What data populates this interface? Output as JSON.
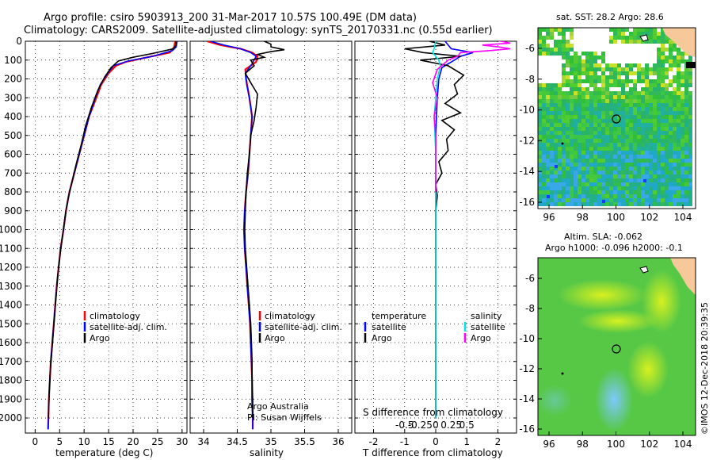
{
  "title_line1": "Argo profile: csiro 5903913_200 31-Mar-2017 10.57S 100.49E (DM data)",
  "title_line2": "Climatology: CARS2009. Satellite-adjusted climatology: synTS_20170331.nc (0.55d earlier)",
  "colors": {
    "climatology": "#ff0000",
    "satellite": "#0000ff",
    "argo": "#000000",
    "sat_salinity": "#00e5e5",
    "argo_salinity": "#ff00ff"
  },
  "chart_data": [
    {
      "type": "line",
      "id": "temperature",
      "xlabel": "temperature (deg C)",
      "ylabel": "",
      "xlim": [
        -2,
        31
      ],
      "ylim": [
        0,
        2080
      ],
      "y_reversed": true,
      "xticks": [
        0,
        5,
        10,
        15,
        20,
        25,
        30
      ],
      "yticks": [
        0,
        100,
        200,
        300,
        400,
        500,
        600,
        700,
        800,
        900,
        1000,
        1100,
        1200,
        1300,
        1400,
        1500,
        1600,
        1700,
        1800,
        1900,
        2000
      ],
      "legend": [
        "climatology",
        "satellite-adj. clim.",
        "Argo"
      ],
      "series": [
        {
          "name": "climatology",
          "color": "red",
          "points": [
            [
              28.6,
              0
            ],
            [
              28.4,
              30
            ],
            [
              27.5,
              60
            ],
            [
              22,
              90
            ],
            [
              18.5,
              110
            ],
            [
              16.5,
              130
            ],
            [
              15,
              170
            ],
            [
              13.5,
              230
            ],
            [
              12.5,
              300
            ],
            [
              11,
              400
            ],
            [
              10,
              500
            ],
            [
              9,
              600
            ],
            [
              8,
              700
            ],
            [
              7,
              800
            ],
            [
              6.3,
              900
            ],
            [
              5.8,
              1000
            ],
            [
              5.2,
              1100
            ],
            [
              4.8,
              1200
            ],
            [
              4.4,
              1300
            ],
            [
              4.1,
              1400
            ],
            [
              3.8,
              1500
            ],
            [
              3.5,
              1600
            ],
            [
              3.2,
              1700
            ],
            [
              3,
              1800
            ],
            [
              2.8,
              1900
            ],
            [
              2.7,
              2000
            ],
            [
              2.65,
              2060
            ]
          ]
        },
        {
          "name": "satellite-adj. clim.",
          "color": "blue",
          "points": [
            [
              29,
              0
            ],
            [
              28.8,
              30
            ],
            [
              28,
              50
            ],
            [
              24,
              80
            ],
            [
              19,
              105
            ],
            [
              16,
              130
            ],
            [
              14.8,
              170
            ],
            [
              13.3,
              230
            ],
            [
              12.3,
              300
            ],
            [
              11,
              400
            ],
            [
              10,
              500
            ],
            [
              9,
              600
            ],
            [
              8,
              700
            ],
            [
              7,
              800
            ],
            [
              6.3,
              900
            ],
            [
              5.8,
              1000
            ],
            [
              5.2,
              1100
            ],
            [
              4.8,
              1200
            ],
            [
              4.4,
              1300
            ],
            [
              4.1,
              1400
            ],
            [
              3.8,
              1500
            ],
            [
              3.5,
              1600
            ],
            [
              3.2,
              1700
            ],
            [
              3,
              1800
            ],
            [
              2.8,
              1900
            ],
            [
              2.7,
              2000
            ],
            [
              2.65,
              2060
            ]
          ]
        },
        {
          "name": "Argo",
          "color": "black",
          "points": [
            [
              28.7,
              0
            ],
            [
              28.8,
              20
            ],
            [
              28.2,
              40
            ],
            [
              24,
              65
            ],
            [
              20,
              85
            ],
            [
              17,
              105
            ],
            [
              15.5,
              140
            ],
            [
              14.2,
              190
            ],
            [
              12.8,
              260
            ],
            [
              11.5,
              350
            ],
            [
              10.3,
              450
            ],
            [
              9.4,
              550
            ],
            [
              8.4,
              650
            ],
            [
              7.5,
              750
            ],
            [
              6.6,
              850
            ],
            [
              6,
              950
            ],
            [
              5.5,
              1050
            ],
            [
              5,
              1150
            ],
            [
              4.6,
              1250
            ],
            [
              4.3,
              1350
            ],
            [
              4,
              1450
            ],
            [
              3.7,
              1550
            ],
            [
              3.4,
              1650
            ],
            [
              3.1,
              1750
            ],
            [
              2.9,
              1850
            ],
            [
              2.75,
              1950
            ],
            [
              2.7,
              2000
            ]
          ]
        }
      ]
    },
    {
      "type": "line",
      "id": "salinity",
      "xlabel": "salinity",
      "xlim": [
        33.8,
        36.2
      ],
      "ylim": [
        0,
        2080
      ],
      "y_reversed": true,
      "xticks": [
        34,
        34.5,
        35,
        35.5,
        36
      ],
      "legend": [
        "climatology",
        "satellite-adj. clim.",
        "Argo"
      ],
      "annotations": [
        "Argo Australia",
        "PI: Susan Wijffels"
      ],
      "series": [
        {
          "name": "climatology",
          "color": "red",
          "points": [
            [
              34.05,
              0
            ],
            [
              34.25,
              20
            ],
            [
              34.55,
              40
            ],
            [
              34.72,
              60
            ],
            [
              34.8,
              80
            ],
            [
              34.78,
              110
            ],
            [
              34.62,
              150
            ],
            [
              34.63,
              200
            ],
            [
              34.68,
              300
            ],
            [
              34.72,
              400
            ],
            [
              34.7,
              500
            ],
            [
              34.68,
              600
            ],
            [
              34.66,
              700
            ],
            [
              34.63,
              800
            ],
            [
              34.61,
              900
            ],
            [
              34.6,
              1000
            ],
            [
              34.61,
              1100
            ],
            [
              34.63,
              1200
            ],
            [
              34.65,
              1300
            ],
            [
              34.67,
              1400
            ],
            [
              34.69,
              1500
            ],
            [
              34.7,
              1600
            ],
            [
              34.71,
              1700
            ],
            [
              34.72,
              1800
            ],
            [
              34.72,
              1900
            ],
            [
              34.73,
              2000
            ],
            [
              34.73,
              2060
            ]
          ]
        },
        {
          "name": "satellite-adj. clim.",
          "color": "blue",
          "points": [
            [
              34.1,
              0
            ],
            [
              34.3,
              20
            ],
            [
              34.55,
              40
            ],
            [
              34.7,
              60
            ],
            [
              34.78,
              80
            ],
            [
              34.72,
              120
            ],
            [
              34.62,
              170
            ],
            [
              34.64,
              230
            ],
            [
              34.68,
              300
            ],
            [
              34.72,
              400
            ],
            [
              34.7,
              500
            ],
            [
              34.68,
              600
            ],
            [
              34.66,
              700
            ],
            [
              34.63,
              800
            ],
            [
              34.61,
              900
            ],
            [
              34.6,
              1000
            ],
            [
              34.61,
              1100
            ],
            [
              34.63,
              1200
            ],
            [
              34.65,
              1300
            ],
            [
              34.67,
              1400
            ],
            [
              34.69,
              1500
            ],
            [
              34.7,
              1600
            ],
            [
              34.71,
              1700
            ],
            [
              34.72,
              1800
            ],
            [
              34.72,
              1900
            ],
            [
              34.73,
              2000
            ],
            [
              34.73,
              2060
            ]
          ]
        },
        {
          "name": "Argo",
          "color": "black",
          "points": [
            [
              34.9,
              0
            ],
            [
              35.0,
              15
            ],
            [
              35.0,
              30
            ],
            [
              35.2,
              45
            ],
            [
              35.0,
              55
            ],
            [
              34.8,
              70
            ],
            [
              34.9,
              85
            ],
            [
              34.7,
              100
            ],
            [
              34.75,
              130
            ],
            [
              34.62,
              170
            ],
            [
              34.7,
              220
            ],
            [
              34.8,
              280
            ],
            [
              34.78,
              350
            ],
            [
              34.75,
              420
            ],
            [
              34.7,
              500
            ],
            [
              34.68,
              600
            ],
            [
              34.65,
              700
            ],
            [
              34.63,
              800
            ],
            [
              34.62,
              900
            ],
            [
              34.61,
              1000
            ],
            [
              34.62,
              1100
            ],
            [
              34.64,
              1200
            ],
            [
              34.66,
              1300
            ],
            [
              34.68,
              1400
            ],
            [
              34.7,
              1500
            ],
            [
              34.71,
              1600
            ],
            [
              34.72,
              1700
            ],
            [
              34.72,
              1800
            ],
            [
              34.73,
              1900
            ],
            [
              34.73,
              2000
            ]
          ]
        }
      ]
    },
    {
      "type": "line",
      "id": "difference",
      "xlabel": "T difference from climatology",
      "xlabel_top": "S difference from climatology",
      "xlim": [
        -2.6,
        2.6
      ],
      "ylim": [
        0,
        2080
      ],
      "y_reversed": true,
      "xticks": [
        -2,
        -1,
        0,
        1,
        2
      ],
      "xticks_top": [
        "-0.5",
        "-0.25",
        "0",
        "0.25",
        "0.5"
      ],
      "legend": {
        "temperature_header": "temperature",
        "salinity_header": "salinity",
        "satellite": "satellite",
        "argo": "Argo"
      },
      "series": [
        {
          "name": "temperature satellite",
          "color": "blue",
          "points": [
            [
              0.3,
              0
            ],
            [
              0.5,
              40
            ],
            [
              1.2,
              60
            ],
            [
              0.8,
              80
            ],
            [
              0.6,
              100
            ],
            [
              0.2,
              140
            ],
            [
              0.1,
              200
            ],
            [
              0.05,
              300
            ],
            [
              0,
              500
            ],
            [
              0,
              800
            ],
            [
              0,
              1200
            ],
            [
              0,
              1600
            ],
            [
              0,
              2000
            ]
          ]
        },
        {
          "name": "temperature Argo",
          "color": "black",
          "points": [
            [
              -0.2,
              0
            ],
            [
              0.3,
              20
            ],
            [
              -1,
              40
            ],
            [
              -0.4,
              60
            ],
            [
              0.8,
              80
            ],
            [
              -0.5,
              100
            ],
            [
              0.4,
              130
            ],
            [
              0.9,
              180
            ],
            [
              0.6,
              230
            ],
            [
              0.7,
              280
            ],
            [
              0.3,
              330
            ],
            [
              0.8,
              380
            ],
            [
              0.2,
              420
            ],
            [
              0.6,
              470
            ],
            [
              0.35,
              520
            ],
            [
              0.4,
              580
            ],
            [
              0.1,
              640
            ],
            [
              0.2,
              700
            ],
            [
              0,
              760
            ],
            [
              0.05,
              820
            ],
            [
              0,
              900
            ],
            [
              0,
              1200
            ],
            [
              0,
              1600
            ],
            [
              0,
              2000
            ]
          ]
        },
        {
          "name": "salinity satellite",
          "color": "cyan",
          "points": [
            [
              0,
              0
            ],
            [
              -0.05,
              40
            ],
            [
              -0.1,
              60
            ],
            [
              0.1,
              100
            ],
            [
              0.15,
              130
            ],
            [
              0.05,
              200
            ],
            [
              0,
              300
            ],
            [
              -0.05,
              400
            ],
            [
              0,
              600
            ],
            [
              0,
              1000
            ],
            [
              0,
              1400
            ],
            [
              0,
              1800
            ],
            [
              0,
              2000
            ]
          ]
        },
        {
          "name": "salinity Argo",
          "color": "magenta",
          "points": [
            [
              1.8,
              -10
            ],
            [
              2.4,
              10
            ],
            [
              1.5,
              20
            ],
            [
              2.0,
              30
            ],
            [
              2.4,
              40
            ],
            [
              1.7,
              50
            ],
            [
              0.8,
              60
            ],
            [
              0.7,
              80
            ],
            [
              0.4,
              100
            ],
            [
              0.05,
              150
            ],
            [
              -0.1,
              220
            ],
            [
              0.05,
              300
            ],
            [
              -0.05,
              400
            ],
            [
              0,
              500
            ],
            [
              0,
              800
            ]
          ]
        }
      ]
    }
  ],
  "maps": {
    "sst_title": "sat. SST: 28.2 Argo: 28.6",
    "sla_title1": "Altim. SLA: -0.062",
    "sla_title2": "Argo h1000: -0.096 h2000: -0.1",
    "xticks": [
      "96",
      "98",
      "100",
      "102",
      "104"
    ],
    "yticks": [
      "-6",
      "-8",
      "-10",
      "-12",
      "-14",
      "-16"
    ],
    "credit": "©IMOS 12-Dec-2018 20:39:35"
  }
}
